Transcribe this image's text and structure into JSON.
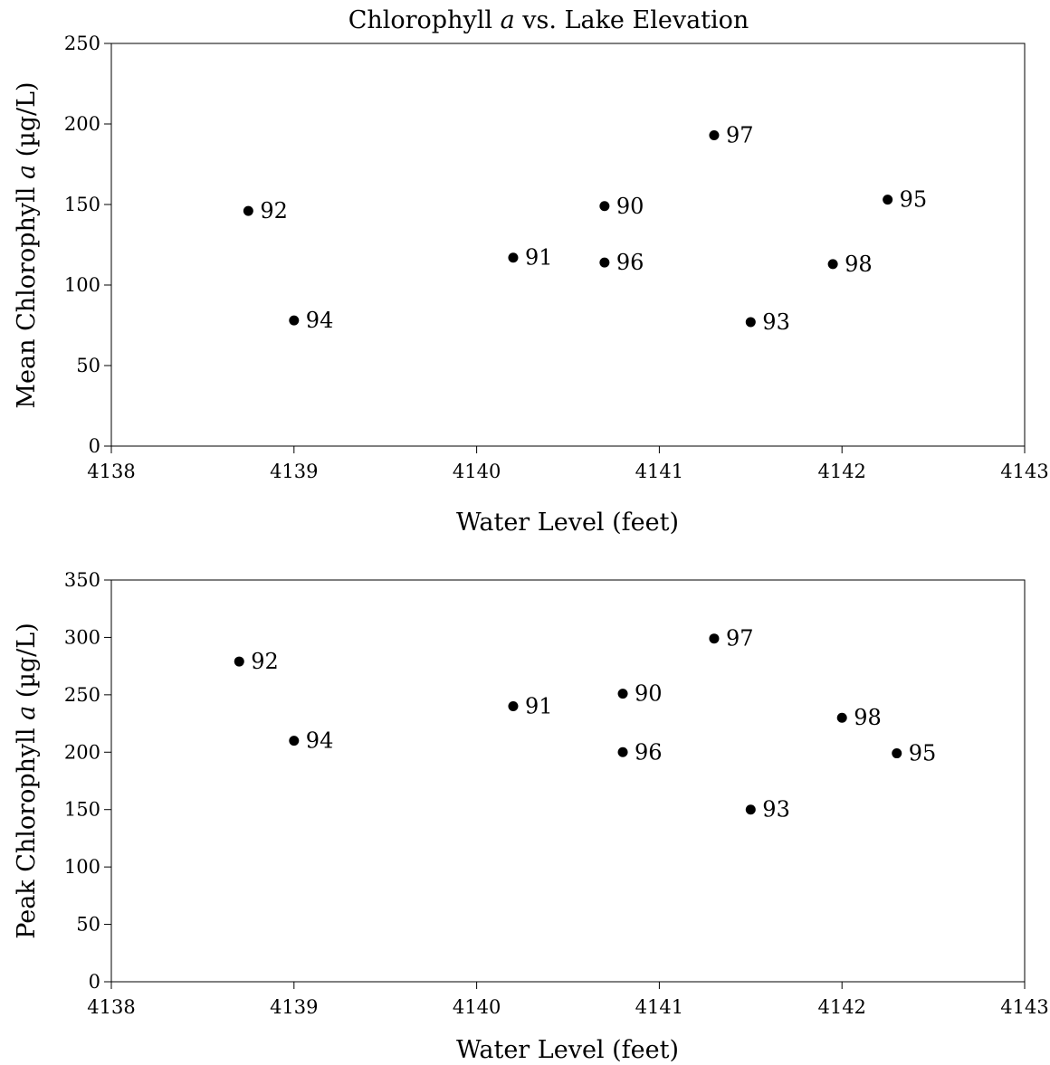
{
  "chart_data": [
    {
      "type": "scatter",
      "title": "Chlorophyll a vs. Lake Elevation",
      "title_parts": [
        "Chlorophyll ",
        "a",
        " vs. Lake Elevation"
      ],
      "xlabel": "Water Level (feet)",
      "ylabel": "Mean Chlorophyll a (µg/L)",
      "ylabel_parts": [
        "Mean Chlorophyll ",
        "a",
        " (µg/L)"
      ],
      "xlim": [
        4138,
        4143
      ],
      "ylim": [
        0,
        250
      ],
      "xticks": [
        4138,
        4139,
        4140,
        4141,
        4142,
        4143
      ],
      "yticks": [
        0,
        50,
        100,
        150,
        200,
        250
      ],
      "grid": false,
      "points": [
        {
          "label": "90",
          "x": 4140.7,
          "y": 149
        },
        {
          "label": "91",
          "x": 4140.2,
          "y": 117
        },
        {
          "label": "92",
          "x": 4138.75,
          "y": 146
        },
        {
          "label": "93",
          "x": 4141.5,
          "y": 77
        },
        {
          "label": "94",
          "x": 4139.0,
          "y": 78
        },
        {
          "label": "95",
          "x": 4142.25,
          "y": 153
        },
        {
          "label": "96",
          "x": 4140.7,
          "y": 114
        },
        {
          "label": "97",
          "x": 4141.3,
          "y": 193
        },
        {
          "label": "98",
          "x": 4141.95,
          "y": 113
        }
      ]
    },
    {
      "type": "scatter",
      "title": "",
      "xlabel": "Water Level (feet)",
      "ylabel": "Peak Chlorophyll a (µg/L)",
      "ylabel_parts": [
        "Peak Chlorophyll ",
        "a",
        " (µg/L)"
      ],
      "xlim": [
        4138,
        4143
      ],
      "ylim": [
        0,
        350
      ],
      "xticks": [
        4138,
        4139,
        4140,
        4141,
        4142,
        4143
      ],
      "yticks": [
        0,
        50,
        100,
        150,
        200,
        250,
        300,
        350
      ],
      "grid": false,
      "points": [
        {
          "label": "90",
          "x": 4140.8,
          "y": 251
        },
        {
          "label": "91",
          "x": 4140.2,
          "y": 240
        },
        {
          "label": "92",
          "x": 4138.7,
          "y": 279
        },
        {
          "label": "93",
          "x": 4141.5,
          "y": 150
        },
        {
          "label": "94",
          "x": 4139.0,
          "y": 210
        },
        {
          "label": "95",
          "x": 4142.3,
          "y": 199
        },
        {
          "label": "96",
          "x": 4140.8,
          "y": 200
        },
        {
          "label": "97",
          "x": 4141.3,
          "y": 299
        },
        {
          "label": "98",
          "x": 4142.0,
          "y": 230
        }
      ]
    }
  ]
}
